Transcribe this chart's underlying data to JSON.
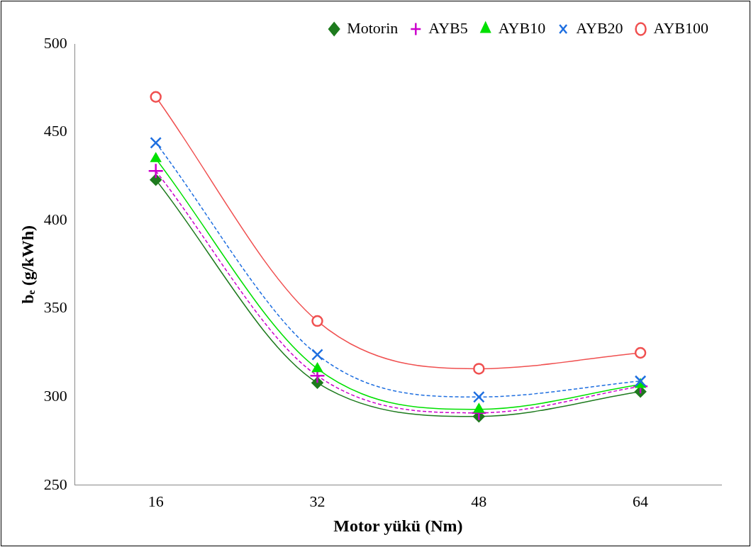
{
  "chart_data": {
    "type": "line",
    "xlabel": "Motor yükü (Nm)",
    "ylabel": "bₑ (g/kWh)",
    "categories": [
      "16",
      "32",
      "48",
      "64"
    ],
    "series": [
      {
        "name": "Motorin",
        "color": "#1e7b1e",
        "values": [
          423,
          308,
          289,
          303
        ],
        "marker": "diamond",
        "line_style": "solid"
      },
      {
        "name": "AYB5",
        "color": "#cc00cc",
        "values": [
          428,
          312,
          291,
          306
        ],
        "marker": "cross",
        "line_style": "dashed"
      },
      {
        "name": "AYB10",
        "color": "#00e000",
        "values": [
          435,
          316,
          293,
          307
        ],
        "marker": "triangle",
        "line_style": "solid"
      },
      {
        "name": "AYB20",
        "color": "#1f6fe0",
        "values": [
          444,
          324,
          300,
          309
        ],
        "marker": "x",
        "line_style": "dashed"
      },
      {
        "name": "AYB100",
        "color": "#f05050",
        "values": [
          470,
          343,
          316,
          325
        ],
        "marker": "circle",
        "line_style": "solid"
      }
    ],
    "ylim": [
      250,
      500
    ],
    "yticks": [
      250,
      300,
      350,
      400,
      450,
      500
    ],
    "grid": false,
    "legend": "top"
  }
}
